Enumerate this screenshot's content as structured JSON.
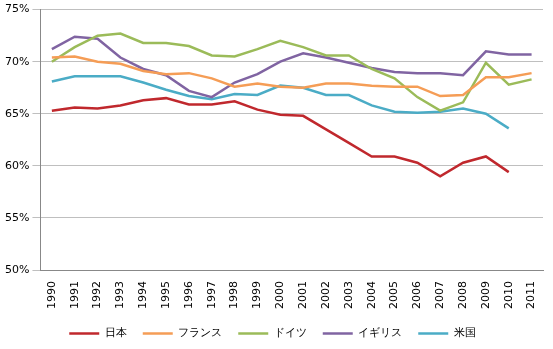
{
  "chart_data": {
    "type": "line",
    "categories": [
      "1990",
      "1991",
      "1992",
      "1993",
      "1994",
      "1995",
      "1996",
      "1997",
      "1998",
      "1999",
      "2000",
      "2001",
      "2002",
      "2003",
      "2004",
      "2005",
      "2006",
      "2007",
      "2008",
      "2009",
      "2010",
      "2011"
    ],
    "series": [
      {
        "name": "日本",
        "color": "#c0282d",
        "values": [
          65.3,
          65.6,
          65.5,
          65.8,
          66.3,
          66.5,
          65.9,
          65.9,
          66.2,
          65.4,
          64.9,
          64.8,
          63.5,
          62.2,
          60.9,
          60.9,
          60.3,
          59.0,
          60.3,
          60.9,
          59.4,
          null
        ]
      },
      {
        "name": "フランス",
        "color": "#f59d56",
        "values": [
          70.4,
          70.5,
          70.0,
          69.8,
          69.1,
          68.8,
          68.9,
          68.4,
          67.6,
          67.9,
          67.6,
          67.5,
          67.9,
          67.9,
          67.7,
          67.6,
          67.6,
          66.7,
          66.8,
          68.5,
          68.5,
          68.9
        ]
      },
      {
        "name": "ドイツ",
        "color": "#9bbb59",
        "values": [
          70.0,
          71.4,
          72.5,
          72.7,
          71.8,
          71.8,
          71.5,
          70.6,
          70.5,
          71.2,
          72.0,
          71.4,
          70.6,
          70.6,
          69.3,
          68.4,
          66.6,
          65.3,
          66.1,
          69.9,
          67.8,
          68.3
        ]
      },
      {
        "name": "イギリス",
        "color": "#8064a2",
        "values": [
          71.2,
          72.4,
          72.2,
          70.4,
          69.3,
          68.7,
          67.2,
          66.6,
          68.0,
          68.8,
          70.0,
          70.8,
          70.4,
          69.9,
          69.4,
          69.0,
          68.9,
          68.9,
          68.7,
          71.0,
          70.7,
          70.7
        ]
      },
      {
        "name": "米国",
        "color": "#4bacc6",
        "values": [
          68.1,
          68.6,
          68.6,
          68.6,
          68.0,
          67.3,
          66.7,
          66.4,
          66.9,
          66.8,
          67.7,
          67.5,
          66.8,
          66.8,
          65.8,
          65.2,
          65.1,
          65.2,
          65.5,
          65.0,
          63.6,
          null
        ]
      }
    ],
    "ylim": [
      50,
      75
    ],
    "yticks": [
      {
        "value": 50,
        "label": "50%"
      },
      {
        "value": 55,
        "label": "55%"
      },
      {
        "value": 60,
        "label": "60%"
      },
      {
        "value": 65,
        "label": "65%"
      },
      {
        "value": 70,
        "label": "70%"
      },
      {
        "value": 75,
        "label": "75%"
      }
    ],
    "grid": true,
    "legend": "bottom"
  }
}
